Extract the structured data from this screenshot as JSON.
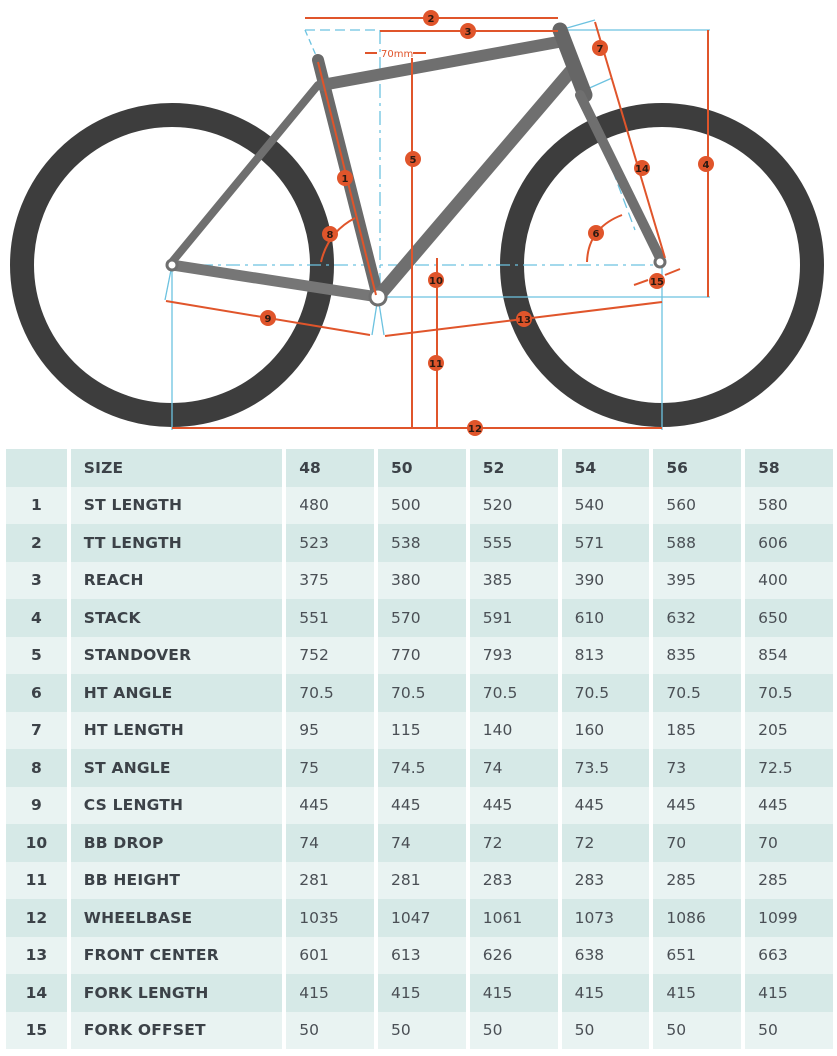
{
  "diagram": {
    "title": "Bike frame geometry diagram",
    "annotation_70mm": "70mm",
    "badges": [
      "1",
      "2",
      "3",
      "4",
      "5",
      "6",
      "7",
      "8",
      "9",
      "10",
      "11",
      "12",
      "13",
      "14",
      "15"
    ],
    "colors": {
      "tire": "#3d3d3d",
      "frame": "#6f6f6f",
      "measure": "#e0552b",
      "reference": "#6cc2e0",
      "badge": "#e0552b"
    }
  },
  "table": {
    "header": {
      "num": "",
      "label": "SIZE",
      "sizes": [
        "48",
        "50",
        "52",
        "54",
        "56",
        "58"
      ]
    },
    "rows": [
      {
        "num": "1",
        "label": "ST LENGTH",
        "values": [
          "480",
          "500",
          "520",
          "540",
          "560",
          "580"
        ]
      },
      {
        "num": "2",
        "label": "TT LENGTH",
        "values": [
          "523",
          "538",
          "555",
          "571",
          "588",
          "606"
        ]
      },
      {
        "num": "3",
        "label": "REACH",
        "values": [
          "375",
          "380",
          "385",
          "390",
          "395",
          "400"
        ]
      },
      {
        "num": "4",
        "label": "STACK",
        "values": [
          "551",
          "570",
          "591",
          "610",
          "632",
          "650"
        ]
      },
      {
        "num": "5",
        "label": "STANDOVER",
        "values": [
          "752",
          "770",
          "793",
          "813",
          "835",
          "854"
        ]
      },
      {
        "num": "6",
        "label": "HT ANGLE",
        "values": [
          "70.5",
          "70.5",
          "70.5",
          "70.5",
          "70.5",
          "70.5"
        ]
      },
      {
        "num": "7",
        "label": "HT LENGTH",
        "values": [
          "95",
          "115",
          "140",
          "160",
          "185",
          "205"
        ]
      },
      {
        "num": "8",
        "label": "ST ANGLE",
        "values": [
          "75",
          "74.5",
          "74",
          "73.5",
          "73",
          "72.5"
        ]
      },
      {
        "num": "9",
        "label": "CS LENGTH",
        "values": [
          "445",
          "445",
          "445",
          "445",
          "445",
          "445"
        ]
      },
      {
        "num": "10",
        "label": "BB DROP",
        "values": [
          "74",
          "74",
          "72",
          "72",
          "70",
          "70"
        ]
      },
      {
        "num": "11",
        "label": "BB HEIGHT",
        "values": [
          "281",
          "281",
          "283",
          "283",
          "285",
          "285"
        ]
      },
      {
        "num": "12",
        "label": "WHEELBASE",
        "values": [
          "1035",
          "1047",
          "1061",
          "1073",
          "1086",
          "1099"
        ]
      },
      {
        "num": "13",
        "label": "FRONT CENTER",
        "values": [
          "601",
          "613",
          "626",
          "638",
          "651",
          "663"
        ]
      },
      {
        "num": "14",
        "label": "FORK LENGTH",
        "values": [
          "415",
          "415",
          "415",
          "415",
          "415",
          "415"
        ]
      },
      {
        "num": "15",
        "label": "FORK OFFSET",
        "values": [
          "50",
          "50",
          "50",
          "50",
          "50",
          "50"
        ]
      }
    ],
    "colors": {
      "row_dark": "#d6e9e7",
      "row_light": "#e9f3f2",
      "text": "#4a4f55"
    }
  }
}
